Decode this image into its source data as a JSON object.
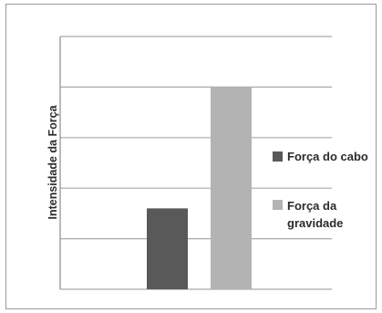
{
  "chart_data": {
    "type": "bar",
    "title": "",
    "xlabel": "",
    "ylabel": "Intensidade da Força",
    "categories": [
      ""
    ],
    "series": [
      {
        "name": "Força do cabo",
        "values": [
          1.6
        ],
        "color": "#595959"
      },
      {
        "name": "Força da gravidade",
        "values": [
          4.0
        ],
        "color": "#b3b3b3"
      }
    ],
    "ylim": [
      0,
      5
    ],
    "yticks": [
      0,
      1,
      2,
      3,
      4,
      5
    ],
    "y_tick_labels_shown": false,
    "grid": true,
    "legend_position": "right"
  }
}
